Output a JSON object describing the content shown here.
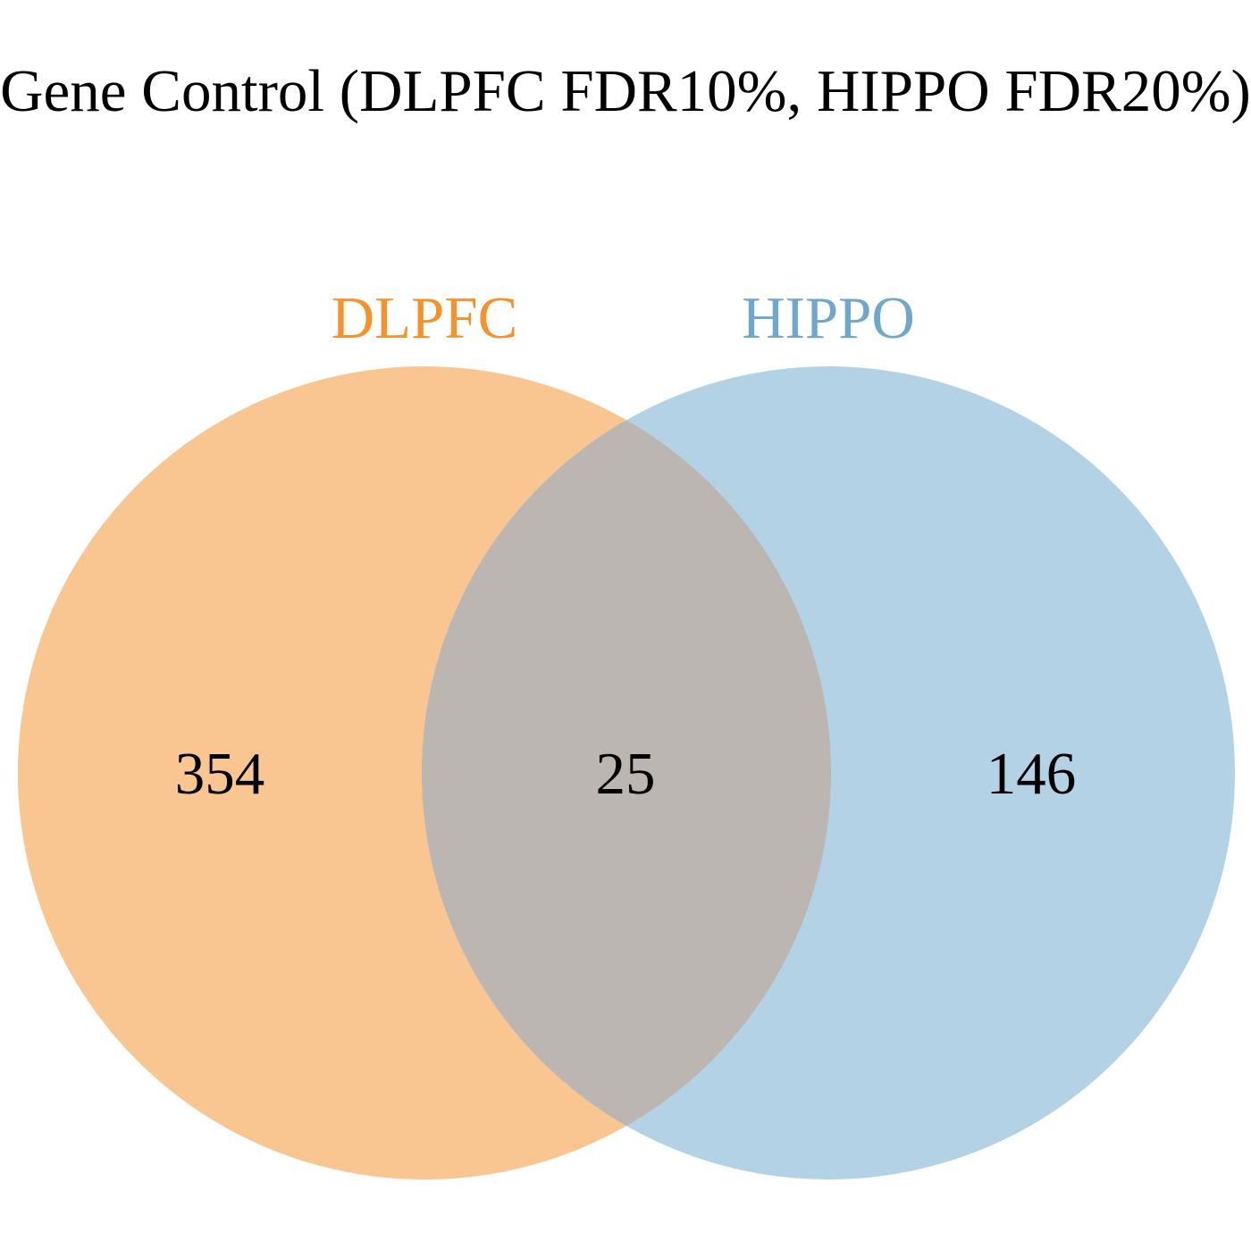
{
  "title": "Gene Control (DLPFC FDR10%, HIPPO FDR20%)",
  "sets": [
    {
      "name": "DLPFC",
      "color": "#F5922B",
      "fill": "#F9C692"
    },
    {
      "name": "HIPPO",
      "color": "#6FA8CC",
      "fill": "#B4D2E5"
    }
  ],
  "overlap_fill": "#BBB6B2",
  "counts": {
    "dlpfc_only": "354",
    "both": "25",
    "hippo_only": "146"
  }
}
